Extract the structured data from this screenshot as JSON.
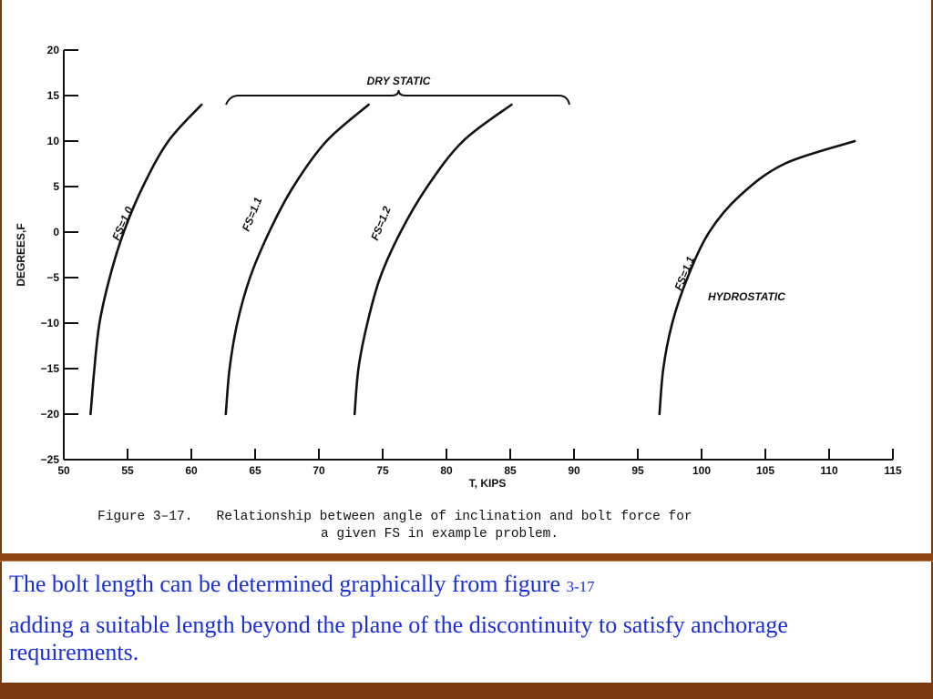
{
  "chart_data": {
    "type": "line",
    "xlabel": "T, KIPS",
    "ylabel": "DEGREES,F",
    "xlim": [
      50,
      115
    ],
    "ylim": [
      -25,
      20
    ],
    "x_ticks": [
      50,
      55,
      60,
      65,
      70,
      75,
      80,
      85,
      90,
      95,
      100,
      105,
      110,
      115
    ],
    "y_ticks": [
      20,
      15,
      10,
      5,
      0,
      -5,
      -10,
      -15,
      -20,
      -25
    ],
    "grid": false,
    "series": [
      {
        "name": "FS=1.0",
        "color": "#111111",
        "points": [
          [
            52.1,
            -20
          ],
          [
            52.4,
            -15
          ],
          [
            52.8,
            -10
          ],
          [
            53.6,
            -5
          ],
          [
            54.7,
            0
          ],
          [
            56.2,
            5
          ],
          [
            58.2,
            10
          ],
          [
            60.8,
            14
          ]
        ]
      },
      {
        "name": "FS=1.1",
        "color": "#111111",
        "points": [
          [
            62.7,
            -20
          ],
          [
            63.0,
            -15
          ],
          [
            63.6,
            -10
          ],
          [
            64.6,
            -5
          ],
          [
            66.1,
            0
          ],
          [
            68.0,
            5
          ],
          [
            70.6,
            10
          ],
          [
            73.9,
            14
          ]
        ]
      },
      {
        "name": "FS=1.2",
        "color": "#111111",
        "points": [
          [
            72.8,
            -20
          ],
          [
            73.1,
            -15
          ],
          [
            73.8,
            -10
          ],
          [
            74.8,
            -5
          ],
          [
            76.4,
            0
          ],
          [
            78.5,
            5
          ],
          [
            81.3,
            10
          ],
          [
            85.1,
            14
          ]
        ]
      },
      {
        "name": "FS=1.1",
        "color": "#111111",
        "points": [
          [
            96.7,
            -20
          ],
          [
            97.0,
            -15
          ],
          [
            97.7,
            -10
          ],
          [
            98.9,
            -5
          ],
          [
            100.6,
            0
          ],
          [
            103.0,
            4
          ],
          [
            106.5,
            7.5
          ],
          [
            112.0,
            10
          ]
        ]
      }
    ],
    "annotations": {
      "dry_static": "DRY STATIC",
      "hydrostatic": "HYDROSTATIC"
    }
  },
  "caption": {
    "line1": "Figure 3–17.   Relationship between angle of inclination and bolt force for",
    "line2": "a given FS in example problem."
  },
  "text": {
    "line1_main": "The bolt length can be determined graphically from figure ",
    "line1_ref": "3-17",
    "line2": "adding a suitable length beyond the plane of the discontinuity to satisfy anchorage requirements."
  },
  "colors": {
    "body_text": "#1a2fd8",
    "divider": "#8b4513",
    "footer": "#7a3a10"
  }
}
